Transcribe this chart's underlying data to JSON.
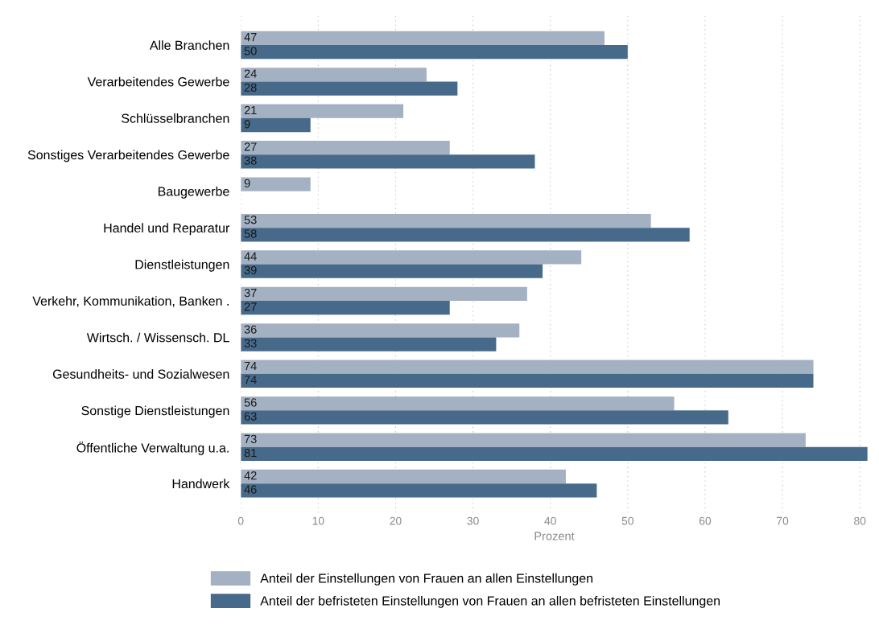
{
  "chart_data": {
    "type": "bar",
    "orientation": "horizontal",
    "xlabel": "Prozent",
    "categories": [
      "Alle Branchen",
      "Verarbeitendes Gewerbe",
      "Schlüsselbranchen",
      "Sonstiges Verarbeitendes Gewerbe",
      "Baugewerbe",
      "Handel und Reparatur",
      "Dienstleistungen",
      "Verkehr, Kommunikation, Banken .",
      "Wirtsch. / Wissensch. DL",
      "Gesundheits- und Sozialwesen",
      "Sonstige Dienstleistungen",
      "Öffentliche Verwaltung u.a.",
      "Handwerk"
    ],
    "series": [
      {
        "name": "Anteil der Einstellungen von Frauen an allen Einstellungen",
        "color": "#a3b1c2",
        "values": [
          47,
          24,
          21,
          27,
          9,
          53,
          44,
          37,
          36,
          74,
          56,
          73,
          42
        ]
      },
      {
        "name": "Anteil der befristeten Einstellungen von Frauen an allen befristeten Einstellungen",
        "color": "#476a8a",
        "values": [
          50,
          28,
          9,
          38,
          null,
          58,
          39,
          27,
          33,
          74,
          63,
          81,
          46
        ]
      }
    ],
    "data_labels": true,
    "xlim": [
      0,
      81
    ],
    "xticks": [
      0,
      10,
      20,
      30,
      40,
      50,
      60,
      70,
      80
    ],
    "grid": "x",
    "legend": "bottom"
  }
}
